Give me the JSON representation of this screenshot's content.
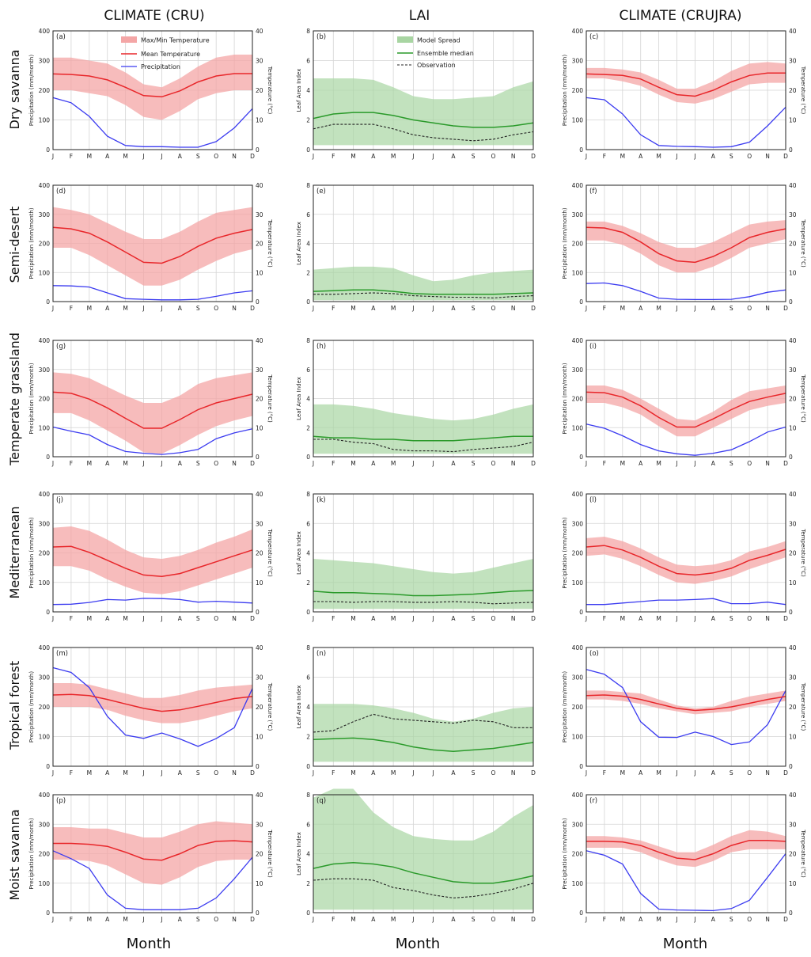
{
  "headers": {
    "columns": [
      "CLIMATE (CRU)",
      "LAI",
      "CLIMATE (CRUJRA)"
    ],
    "rows": [
      "Dry savanna",
      "Semi-desert",
      "Temperate grassland",
      "Mediterranean",
      "Tropical forest",
      "Moist savanna"
    ],
    "xlabel": "Month"
  },
  "colors": {
    "temp_band": "#f4a6a6",
    "mean_temp": "#e8262a",
    "precip": "#3b3bf0",
    "spread": "#a8d5a2",
    "median": "#2a9a2a",
    "observation": "#222222"
  },
  "axes": {
    "months": [
      "J",
      "F",
      "M",
      "A",
      "M",
      "J",
      "J",
      "A",
      "S",
      "O",
      "N",
      "D"
    ],
    "precip_label": "Precipitation (mm/month)",
    "temp_label": "Temperature (°C)",
    "lai_label": "Leaf Area Index",
    "precip_ticks": [
      "0",
      "100",
      "200",
      "300",
      "400"
    ],
    "temp_ticks": [
      "0",
      "10",
      "20",
      "30",
      "40"
    ],
    "lai_ticks": [
      "0",
      "2",
      "4",
      "6",
      "8"
    ]
  },
  "legends": {
    "climate": [
      "Max/Min Temperature",
      "Mean Temperature",
      "Precipitation"
    ],
    "lai": [
      "Model Spread",
      "Ensemble median",
      "Observation"
    ]
  },
  "chart_data": [
    {
      "type": "line",
      "panel": "a",
      "title": "(a)",
      "ylim": [
        0,
        400
      ],
      "y2lim": [
        0,
        40
      ],
      "precip": [
        175,
        158,
        112,
        45,
        14,
        10,
        10,
        8,
        8,
        27,
        73,
        138
      ],
      "tmax": [
        31,
        31,
        30,
        29,
        26,
        22,
        21,
        24,
        28,
        31,
        32,
        32
      ],
      "tmean": [
        25.5,
        25.3,
        24.8,
        23.5,
        21,
        18.2,
        17.8,
        19.8,
        22.8,
        24.8,
        25.6,
        25.6
      ],
      "tmin": [
        20,
        20,
        19,
        18,
        15,
        11,
        10,
        13,
        17,
        19,
        20,
        20
      ]
    },
    {
      "type": "line",
      "panel": "b",
      "title": "(b)",
      "ylim": [
        0,
        8
      ],
      "spread_max": [
        4.8,
        4.8,
        4.8,
        4.7,
        4.2,
        3.6,
        3.4,
        3.4,
        3.5,
        3.6,
        4.2,
        4.6
      ],
      "spread_min": [
        0.3,
        0.3,
        0.3,
        0.3,
        0.3,
        0.3,
        0.3,
        0.3,
        0.3,
        0.3,
        0.3,
        0.3
      ],
      "median": [
        2.1,
        2.4,
        2.5,
        2.5,
        2.3,
        2.0,
        1.8,
        1.6,
        1.5,
        1.5,
        1.6,
        1.8
      ],
      "observation": [
        1.4,
        1.7,
        1.7,
        1.7,
        1.4,
        1.0,
        0.8,
        0.7,
        0.6,
        0.7,
        1.0,
        1.2
      ]
    },
    {
      "type": "line",
      "panel": "c",
      "title": "(c)",
      "ylim": [
        0,
        400
      ],
      "y2lim": [
        0,
        40
      ],
      "precip": [
        175,
        168,
        120,
        50,
        14,
        11,
        10,
        8,
        10,
        25,
        80,
        143
      ],
      "tmax": [
        27.5,
        27.5,
        27,
        26,
        23.5,
        20.5,
        20.5,
        23,
        26.5,
        29,
        29.5,
        29
      ],
      "tmean": [
        25.5,
        25.3,
        25,
        23.8,
        21,
        18.5,
        18,
        20,
        22.8,
        25,
        25.8,
        25.8
      ],
      "tmin": [
        24,
        24,
        23,
        21.5,
        18.5,
        16,
        15.5,
        17,
        19.5,
        22,
        22.5,
        22.5
      ]
    },
    {
      "type": "line",
      "panel": "d",
      "title": "(d)",
      "ylim": [
        0,
        400
      ],
      "y2lim": [
        0,
        40
      ],
      "precip": [
        55,
        54,
        50,
        30,
        10,
        8,
        6,
        6,
        8,
        18,
        30,
        37
      ],
      "tmax": [
        32.5,
        31.5,
        30,
        27,
        24,
        21.5,
        21.5,
        24,
        27.5,
        30.5,
        31.5,
        32.5
      ],
      "tmean": [
        25.5,
        25,
        23.5,
        20.5,
        17,
        13.5,
        13.2,
        15.5,
        19,
        21.8,
        23.5,
        24.8
      ],
      "tmin": [
        18.5,
        18.5,
        16,
        12.5,
        9,
        5.5,
        5.5,
        7.5,
        11,
        14,
        16.5,
        18
      ]
    },
    {
      "type": "line",
      "panel": "e",
      "title": "(e)",
      "ylim": [
        0,
        8
      ],
      "spread_max": [
        2.2,
        2.3,
        2.4,
        2.4,
        2.3,
        1.8,
        1.4,
        1.5,
        1.8,
        2.0,
        2.1,
        2.2
      ],
      "spread_min": [
        0.1,
        0.1,
        0.1,
        0.1,
        0.1,
        0.1,
        0.1,
        0.1,
        0.1,
        0.1,
        0.1,
        0.1
      ],
      "median": [
        0.7,
        0.75,
        0.8,
        0.8,
        0.7,
        0.55,
        0.5,
        0.5,
        0.5,
        0.5,
        0.55,
        0.6
      ],
      "observation": [
        0.5,
        0.5,
        0.55,
        0.6,
        0.55,
        0.4,
        0.35,
        0.3,
        0.3,
        0.25,
        0.35,
        0.4
      ]
    },
    {
      "type": "line",
      "panel": "f",
      "title": "(f)",
      "ylim": [
        0,
        400
      ],
      "y2lim": [
        0,
        40
      ],
      "precip": [
        62,
        64,
        55,
        35,
        12,
        8,
        7,
        7,
        8,
        17,
        32,
        40
      ],
      "tmax": [
        27.5,
        27.5,
        26,
        23.5,
        20.5,
        18.5,
        18.5,
        20.5,
        23.5,
        26.5,
        27.5,
        28
      ],
      "tmean": [
        25.5,
        25.3,
        23.8,
        20.5,
        16.5,
        14,
        13.5,
        15.5,
        18.5,
        22,
        23.8,
        25
      ],
      "tmin": [
        21,
        21,
        19.5,
        16.5,
        12.5,
        10,
        10,
        12,
        15,
        18.5,
        20,
        21.5
      ]
    },
    {
      "type": "line",
      "panel": "g",
      "title": "(g)",
      "ylim": [
        0,
        400
      ],
      "y2lim": [
        0,
        40
      ],
      "precip": [
        102,
        88,
        75,
        42,
        18,
        12,
        8,
        14,
        25,
        62,
        82,
        96
      ],
      "tmax": [
        29,
        28.5,
        27,
        24,
        21,
        18.5,
        18.5,
        21,
        25,
        27,
        28,
        29
      ],
      "tmean": [
        22.2,
        21.8,
        19.8,
        16.8,
        13.2,
        9.8,
        9.8,
        12.8,
        16.2,
        18.5,
        20,
        21.5
      ],
      "tmin": [
        15,
        15,
        12.5,
        9,
        5.5,
        1.5,
        1,
        4,
        7.5,
        10.5,
        12.5,
        14
      ]
    },
    {
      "type": "line",
      "panel": "h",
      "title": "(h)",
      "ylim": [
        0,
        8
      ],
      "spread_max": [
        3.6,
        3.6,
        3.5,
        3.3,
        3.0,
        2.8,
        2.6,
        2.5,
        2.6,
        2.9,
        3.3,
        3.6
      ],
      "spread_min": [
        0.2,
        0.2,
        0.2,
        0.2,
        0.2,
        0.2,
        0.2,
        0.2,
        0.2,
        0.2,
        0.2,
        0.2
      ],
      "median": [
        1.4,
        1.3,
        1.3,
        1.2,
        1.2,
        1.1,
        1.1,
        1.1,
        1.2,
        1.3,
        1.4,
        1.4
      ],
      "observation": [
        1.2,
        1.2,
        1.0,
        0.9,
        0.5,
        0.4,
        0.4,
        0.35,
        0.5,
        0.6,
        0.7,
        1.0
      ]
    },
    {
      "type": "line",
      "panel": "i",
      "title": "(i)",
      "ylim": [
        0,
        400
      ],
      "y2lim": [
        0,
        40
      ],
      "precip": [
        112,
        98,
        72,
        42,
        20,
        10,
        5,
        12,
        24,
        52,
        85,
        102
      ],
      "tmax": [
        24.5,
        24.5,
        23,
        20,
        16.5,
        13,
        12.5,
        15.5,
        19.5,
        22.5,
        23.5,
        24.5
      ],
      "tmean": [
        22.2,
        22,
        20.5,
        17.5,
        13.5,
        10.2,
        10.2,
        13,
        16.2,
        19,
        20.5,
        21.8
      ],
      "tmin": [
        18.5,
        18.5,
        17,
        14.5,
        10.5,
        7,
        7,
        10,
        13,
        16,
        17.5,
        18.5
      ]
    },
    {
      "type": "line",
      "panel": "j",
      "title": "(j)",
      "ylim": [
        0,
        400
      ],
      "y2lim": [
        0,
        40
      ],
      "precip": [
        25,
        26,
        32,
        42,
        40,
        46,
        45,
        42,
        33,
        36,
        33,
        30
      ],
      "tmax": [
        28.5,
        29,
        27.5,
        24.5,
        21,
        18.5,
        18,
        19,
        21,
        23.5,
        25.5,
        28
      ],
      "tmean": [
        22,
        22.2,
        20.2,
        17.5,
        14.8,
        12.5,
        12,
        13,
        15,
        17,
        19,
        21
      ],
      "tmin": [
        15.5,
        15.5,
        14,
        11,
        8.5,
        6.5,
        6,
        7,
        9,
        11,
        13,
        15
      ]
    },
    {
      "type": "line",
      "panel": "k",
      "title": "(k)",
      "ylim": [
        0,
        8
      ],
      "spread_max": [
        3.6,
        3.5,
        3.4,
        3.3,
        3.1,
        2.9,
        2.7,
        2.6,
        2.7,
        3.0,
        3.3,
        3.6
      ],
      "spread_min": [
        0.2,
        0.2,
        0.2,
        0.2,
        0.2,
        0.2,
        0.2,
        0.2,
        0.2,
        0.2,
        0.2,
        0.2
      ],
      "median": [
        1.4,
        1.3,
        1.3,
        1.25,
        1.2,
        1.1,
        1.1,
        1.15,
        1.2,
        1.3,
        1.4,
        1.45
      ],
      "observation": [
        0.7,
        0.7,
        0.65,
        0.7,
        0.7,
        0.65,
        0.65,
        0.7,
        0.65,
        0.55,
        0.6,
        0.65
      ]
    },
    {
      "type": "line",
      "panel": "l",
      "title": "(l)",
      "ylim": [
        0,
        400
      ],
      "y2lim": [
        0,
        40
      ],
      "precip": [
        25,
        25,
        30,
        35,
        40,
        40,
        42,
        45,
        28,
        28,
        33,
        25
      ],
      "tmax": [
        25,
        25.5,
        24,
        21.5,
        18.5,
        16,
        15.5,
        16,
        17.5,
        20.5,
        22,
        24
      ],
      "tmean": [
        22,
        22.5,
        21,
        18.5,
        15.5,
        13,
        12.5,
        13.2,
        14.8,
        17.5,
        19.2,
        21.2
      ],
      "tmin": [
        19,
        19.5,
        18,
        15.5,
        12.5,
        10,
        9.5,
        10.5,
        12,
        14.5,
        16.5,
        18.5
      ]
    },
    {
      "type": "line",
      "panel": "m",
      "title": "(m)",
      "ylim": [
        0,
        400
      ],
      "y2lim": [
        0,
        40
      ],
      "precip": [
        332,
        316,
        265,
        168,
        105,
        94,
        112,
        92,
        67,
        93,
        130,
        262
      ],
      "tmax": [
        28,
        28,
        27.5,
        26,
        24.5,
        23,
        23,
        24,
        25.5,
        26.5,
        27,
        27.5
      ],
      "tmean": [
        24,
        24.2,
        23.8,
        22.5,
        21,
        19.5,
        18.5,
        19,
        20.2,
        21.5,
        22.8,
        23.5
      ],
      "tmin": [
        20,
        20,
        20,
        19,
        17,
        15.5,
        14.5,
        14.5,
        15.5,
        17,
        18.5,
        19.5
      ]
    },
    {
      "type": "line",
      "panel": "n",
      "title": "(n)",
      "ylim": [
        0,
        8
      ],
      "spread_max": [
        4.2,
        4.2,
        4.2,
        4.1,
        3.9,
        3.6,
        3.2,
        3.0,
        3.2,
        3.6,
        3.9,
        4.0
      ],
      "spread_min": [
        0.3,
        0.3,
        0.3,
        0.3,
        0.3,
        0.3,
        0.3,
        0.3,
        0.3,
        0.3,
        0.3,
        0.3
      ],
      "median": [
        1.8,
        1.85,
        1.9,
        1.8,
        1.6,
        1.3,
        1.1,
        1.0,
        1.1,
        1.2,
        1.4,
        1.6
      ],
      "observation": [
        2.3,
        2.4,
        3.0,
        3.5,
        3.2,
        3.1,
        3.0,
        2.9,
        3.1,
        3.0,
        2.6,
        2.6
      ]
    },
    {
      "type": "line",
      "panel": "o",
      "title": "(o)",
      "ylim": [
        0,
        400
      ],
      "y2lim": [
        0,
        40
      ],
      "precip": [
        326,
        310,
        265,
        150,
        98,
        97,
        115,
        100,
        73,
        82,
        140,
        255
      ],
      "tmax": [
        25.5,
        25.5,
        25,
        24.5,
        22.5,
        20.5,
        19.5,
        20,
        22,
        23.5,
        24.5,
        25.5
      ],
      "tmean": [
        23.8,
        24,
        23.6,
        22.5,
        21,
        19.5,
        18.8,
        19.2,
        20,
        21.2,
        22.5,
        23.5
      ],
      "tmin": [
        22.5,
        22.5,
        22,
        21,
        19.5,
        18.5,
        17.5,
        18,
        18.5,
        20,
        21,
        22
      ]
    },
    {
      "type": "line",
      "panel": "p",
      "title": "(p)",
      "ylim": [
        0,
        400
      ],
      "y2lim": [
        0,
        40
      ],
      "precip": [
        210,
        183,
        150,
        60,
        15,
        10,
        10,
        10,
        15,
        50,
        115,
        188
      ],
      "tmax": [
        29,
        29,
        28.5,
        28.5,
        27,
        25.5,
        25.5,
        27.5,
        30,
        31,
        30.5,
        30
      ],
      "tmean": [
        23.5,
        23.5,
        23.2,
        22.5,
        20.5,
        18.2,
        17.8,
        20,
        22.8,
        24.2,
        24.4,
        24
      ],
      "tmin": [
        18,
        18,
        17.5,
        16,
        13,
        10,
        9.5,
        12,
        15.5,
        17.5,
        18,
        18
      ]
    },
    {
      "type": "line",
      "panel": "q",
      "title": "(q)",
      "ylim": [
        0,
        8
      ],
      "spread_max": [
        7.8,
        8.4,
        8.4,
        6.8,
        5.8,
        5.2,
        5.0,
        4.9,
        4.9,
        5.5,
        6.5,
        7.3
      ],
      "spread_min": [
        0.2,
        0.2,
        0.2,
        0.2,
        0.2,
        0.2,
        0.2,
        0.2,
        0.2,
        0.2,
        0.2,
        0.2
      ],
      "median": [
        3.0,
        3.3,
        3.4,
        3.3,
        3.1,
        2.7,
        2.4,
        2.1,
        2.0,
        2.0,
        2.2,
        2.5
      ],
      "observation": [
        2.2,
        2.3,
        2.3,
        2.2,
        1.7,
        1.5,
        1.2,
        1.0,
        1.1,
        1.3,
        1.6,
        2.0
      ]
    },
    {
      "type": "line",
      "panel": "r",
      "title": "(r)",
      "ylim": [
        0,
        400
      ],
      "y2lim": [
        0,
        40
      ],
      "precip": [
        210,
        195,
        165,
        65,
        12,
        9,
        8,
        7,
        14,
        42,
        120,
        200
      ],
      "tmax": [
        26,
        26,
        25.5,
        24.5,
        22.5,
        20.5,
        20.5,
        23,
        26,
        28,
        27.5,
        26
      ],
      "tmean": [
        24.2,
        24.2,
        24,
        22.8,
        20.5,
        18.5,
        18,
        20,
        22.8,
        24.5,
        24.5,
        24.2
      ],
      "tmin": [
        22,
        22,
        22,
        20.5,
        18,
        16,
        15.5,
        17.5,
        20.5,
        21.5,
        21.5,
        21.5
      ]
    }
  ]
}
